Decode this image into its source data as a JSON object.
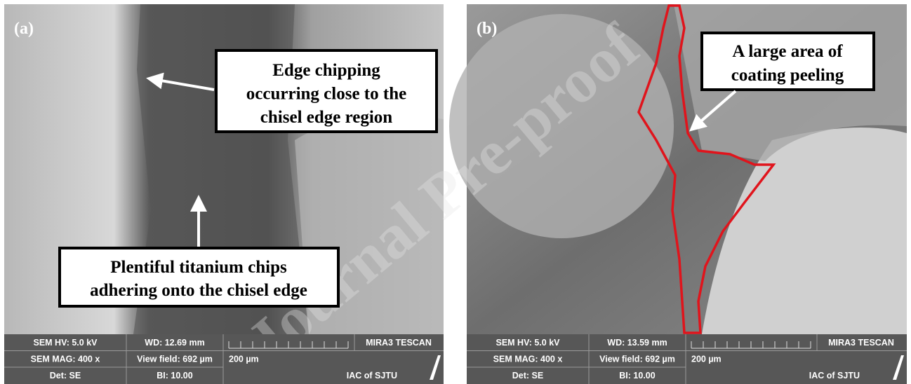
{
  "watermark": "Journal Pre-proof",
  "panels": [
    {
      "label": "(a)",
      "annotations": [
        {
          "lines": [
            "Edge chipping",
            "occurring close to the",
            "chisel edge region"
          ]
        },
        {
          "lines": [
            "Plentiful titanium chips",
            "adhering onto the chisel edge"
          ]
        }
      ],
      "info": {
        "hv": "SEM HV: 5.0 kV",
        "wd": "WD: 12.69 mm",
        "brand": "MIRA3 TESCAN",
        "mag": "SEM MAG: 400 x",
        "view": "View field: 692 µm",
        "scale": "200 µm",
        "det": "Det: SE",
        "bi": "BI: 10.00",
        "lab": "IAC of SJTU"
      }
    },
    {
      "label": "(b)",
      "annotations": [
        {
          "lines": [
            "A large area of",
            "coating peeling"
          ]
        }
      ],
      "info": {
        "hv": "SEM HV: 5.0 kV",
        "wd": "WD: 13.59 mm",
        "brand": "MIRA3 TESCAN",
        "mag": "SEM MAG: 400 x",
        "view": "View field: 692 µm",
        "scale": "200 µm",
        "det": "Det: SE",
        "bi": "BI: 10.00",
        "lab": "IAC of SJTU"
      }
    }
  ]
}
